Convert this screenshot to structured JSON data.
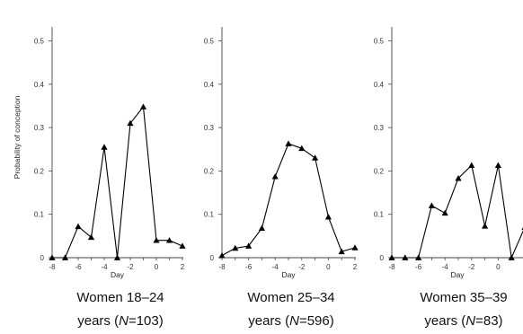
{
  "chart_data": [
    {
      "type": "line",
      "caption_line1": "Women 18–24",
      "caption_line2_parts": [
        "years (",
        "N",
        "=103)"
      ],
      "xlabel": "Day",
      "ylabel": "Probability of conception",
      "xlim": [
        -8,
        2
      ],
      "ylim": [
        0,
        0.55
      ],
      "x_ticks": [
        "-8",
        "-6",
        "-4",
        "-2",
        "0",
        "2"
      ],
      "y_ticks": [
        "0",
        "0.1",
        "0.2",
        "0.3",
        "0.4",
        "0.5"
      ],
      "marker": "triangle",
      "color": "#000000",
      "x": [
        -8,
        -7,
        -6,
        -5,
        -4,
        -3,
        -2,
        -1,
        0,
        1,
        2
      ],
      "values": [
        0.0,
        0.0,
        0.072,
        0.047,
        0.255,
        0.0,
        0.31,
        0.348,
        0.04,
        0.04,
        0.027
      ]
    },
    {
      "type": "line",
      "caption_line1": "Women 25–34",
      "caption_line2_parts": [
        "years (",
        "N",
        "=596)"
      ],
      "xlabel": "Day",
      "ylabel": "",
      "xlim": [
        -8,
        2
      ],
      "ylim": [
        0,
        0.55
      ],
      "x_ticks": [
        "-8",
        "-6",
        "-4",
        "-2",
        "0",
        "2"
      ],
      "y_ticks": [
        "0",
        "0.1",
        "0.2",
        "0.3",
        "0.4",
        "0.5"
      ],
      "marker": "triangle",
      "color": "#000000",
      "x": [
        -8,
        -7,
        -6,
        -5,
        -4,
        -3,
        -2,
        -1,
        0,
        1,
        2
      ],
      "values": [
        0.005,
        0.022,
        0.027,
        0.068,
        0.187,
        0.263,
        0.252,
        0.23,
        0.094,
        0.014,
        0.023
      ]
    },
    {
      "type": "line",
      "caption_line1": "Women 35–39",
      "caption_line2_parts": [
        "years (",
        "N",
        "=83)"
      ],
      "xlabel": "Day",
      "ylabel": "",
      "xlim": [
        -8,
        2
      ],
      "ylim": [
        0,
        0.55
      ],
      "x_ticks": [
        "-8",
        "-6",
        "-4",
        "-2",
        "0",
        "2"
      ],
      "y_ticks": [
        "0",
        "0.1",
        "0.2",
        "0.3",
        "0.4",
        "0.5"
      ],
      "marker": "triangle",
      "color": "#000000",
      "x": [
        -8,
        -7,
        -6,
        -5,
        -4,
        -3,
        -2,
        -1,
        0,
        1,
        2
      ],
      "values": [
        0.0,
        0.0,
        0.0,
        0.12,
        0.103,
        0.183,
        0.213,
        0.073,
        0.213,
        0.0,
        0.07
      ]
    }
  ]
}
